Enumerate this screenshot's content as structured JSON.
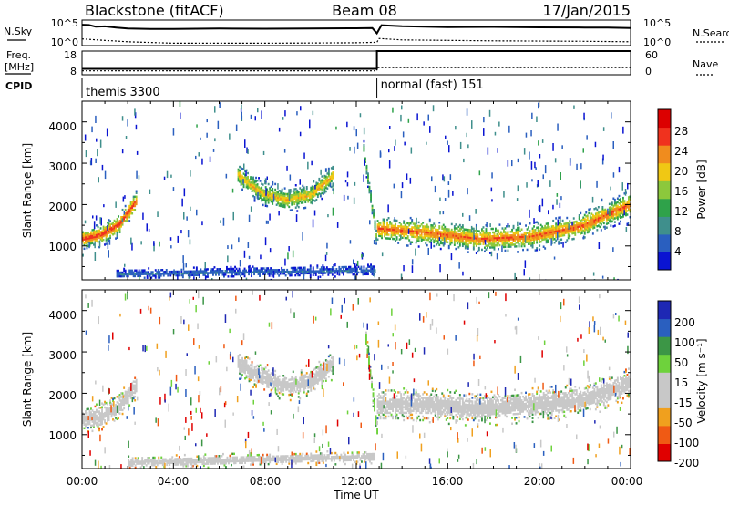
{
  "header": {
    "station": "Blackstone (fitACF)",
    "beam": "Beam 08",
    "date": "17/Jan/2015"
  },
  "noise_panel": {
    "left_label": "N.Sky",
    "left_ticks": [
      "10^5",
      "10^0"
    ],
    "right_ticks": [
      "10^5",
      "10^0"
    ],
    "right_label": "N.Search",
    "sky_series": [
      [
        0.0,
        4.4
      ],
      [
        0.3,
        4.35
      ],
      [
        0.6,
        4.0
      ],
      [
        1.0,
        4.05
      ],
      [
        1.5,
        3.8
      ],
      [
        2.0,
        3.6
      ],
      [
        3.0,
        3.5
      ],
      [
        4.0,
        3.5
      ],
      [
        6.0,
        3.6
      ],
      [
        8.0,
        3.55
      ],
      [
        10.0,
        3.6
      ],
      [
        12.0,
        3.65
      ],
      [
        12.7,
        3.7
      ],
      [
        12.9,
        2.6
      ],
      [
        13.1,
        4.3
      ],
      [
        14.0,
        4.1
      ],
      [
        16.0,
        3.9
      ],
      [
        18.0,
        3.95
      ],
      [
        20.0,
        3.85
      ],
      [
        22.0,
        3.8
      ],
      [
        23.0,
        3.8
      ],
      [
        24.0,
        3.7
      ]
    ],
    "search_series": [
      [
        0.0,
        1.4
      ],
      [
        1.0,
        1.1
      ],
      [
        2.0,
        0.8
      ],
      [
        4.0,
        0.5
      ],
      [
        8.0,
        0.5
      ],
      [
        12.0,
        0.6
      ],
      [
        12.9,
        0.7
      ],
      [
        13.0,
        1.5
      ],
      [
        14.0,
        1.2
      ],
      [
        18.0,
        1.0
      ],
      [
        22.0,
        0.9
      ],
      [
        24.0,
        0.8
      ]
    ]
  },
  "freq_panel": {
    "left_label_line1": "Freq.",
    "left_label_line2": "[MHz]",
    "left_ticks": [
      "18",
      "8"
    ],
    "right_ticks": [
      "60",
      "0"
    ],
    "right_label": "Nave",
    "freq_series": [
      [
        0.0,
        10.5
      ],
      [
        12.9,
        10.5
      ],
      [
        12.9,
        18.0
      ],
      [
        24.0,
        18.0
      ]
    ],
    "freq_range": [
      8,
      18
    ],
    "nave_series": [
      [
        0.0,
        10
      ],
      [
        12.9,
        10
      ],
      [
        12.9,
        18
      ],
      [
        24.0,
        18
      ]
    ],
    "nave_range": [
      0,
      60
    ]
  },
  "cpid_panel": {
    "label": "CPID",
    "segments": [
      {
        "start": 0.0,
        "text": "themis 3300"
      },
      {
        "start": 12.9,
        "text": "normal (fast) 151"
      }
    ]
  },
  "power_panel": {
    "ylabel": "Slant Range [km]",
    "yticks": [
      "1000",
      "2000",
      "3000",
      "4000"
    ],
    "colorbar_label": "Power [dB]",
    "colorbar_ticks": [
      "4",
      "8",
      "12",
      "16",
      "20",
      "24",
      "28"
    ]
  },
  "velocity_panel": {
    "ylabel": "Slant Range [km]",
    "yticks": [
      "1000",
      "2000",
      "3000",
      "4000"
    ],
    "colorbar_label": "Velocity [m s⁻¹]",
    "colorbar_ticks": [
      "200",
      "100",
      "50",
      "15",
      "-15",
      "-50",
      "-100",
      "-200"
    ]
  },
  "xaxis": {
    "label": "Time UT",
    "ticks": [
      "00:00",
      "04:00",
      "08:00",
      "12:00",
      "16:00",
      "20:00",
      "00:00"
    ]
  },
  "chart_data": {
    "type": "heatmap",
    "x_range_hours": [
      0,
      24
    ],
    "y_range_km": [
      180,
      4500
    ],
    "power_colorscale": [
      "#0a14d2",
      "#2a5fbf",
      "#3f8f8c",
      "#2fa24a",
      "#8cc83c",
      "#f0c814",
      "#f08c1e",
      "#f0321e",
      "#dc0000"
    ],
    "power_range_db": [
      0,
      30
    ],
    "velocity_colorscale": [
      "#e00000",
      "#f05a14",
      "#f0a01e",
      "#c8c8c8",
      "#c8c8c8",
      "#6ed23c",
      "#3c9646",
      "#2a5fbf",
      "#1e28b4"
    ],
    "velocity_range": [
      -250,
      250
    ],
    "power_features": [
      {
        "name": "early-arc",
        "t_start": 0.0,
        "t_end": 2.4,
        "r_center": [
          1150,
          1250,
          1500,
          2100
        ],
        "width": 180,
        "power": 26
      },
      {
        "name": "morning-arc",
        "t_start": 6.8,
        "t_end": 11.0,
        "r_center": [
          2700,
          2250,
          2100,
          2200,
          2700
        ],
        "width": 200,
        "power": 20
      },
      {
        "name": "main-band",
        "t_start": 12.9,
        "t_end": 24.0,
        "r_center": [
          1400,
          1300,
          1150,
          1200,
          1450,
          2000
        ],
        "width": 220,
        "power": 24
      },
      {
        "name": "onset-streak",
        "t_start": 12.3,
        "t_end": 12.9,
        "r_center": [
          3300,
          1000
        ],
        "width": 150,
        "power": 14
      },
      {
        "name": "ground-band",
        "t_start": 1.5,
        "t_end": 12.8,
        "r_center": [
          300,
          400
        ],
        "width": 90,
        "power": 6
      }
    ],
    "velocity_features": [
      {
        "name": "early-arc",
        "t_start": 0.0,
        "t_end": 2.4,
        "r_center": [
          1350,
          1400,
          1650,
          2200
        ],
        "width": 220,
        "velocity": 0
      },
      {
        "name": "morning-arc",
        "t_start": 6.8,
        "t_end": 11.0,
        "r_center": [
          2700,
          2350,
          2150,
          2250,
          2700
        ],
        "width": 220,
        "velocity": 0
      },
      {
        "name": "main-band",
        "t_start": 12.9,
        "t_end": 24.0,
        "r_center": [
          1700,
          1700,
          1600,
          1700,
          1800,
          2200
        ],
        "width": 260,
        "velocity": 0
      },
      {
        "name": "onset-streak",
        "t_start": 12.4,
        "t_end": 12.9,
        "r_center": [
          3300,
          1000
        ],
        "width": 160,
        "velocity": 40
      },
      {
        "name": "ground-band",
        "t_start": 2.0,
        "t_end": 12.8,
        "r_center": [
          300,
          450
        ],
        "width": 100,
        "velocity": -40
      }
    ]
  }
}
